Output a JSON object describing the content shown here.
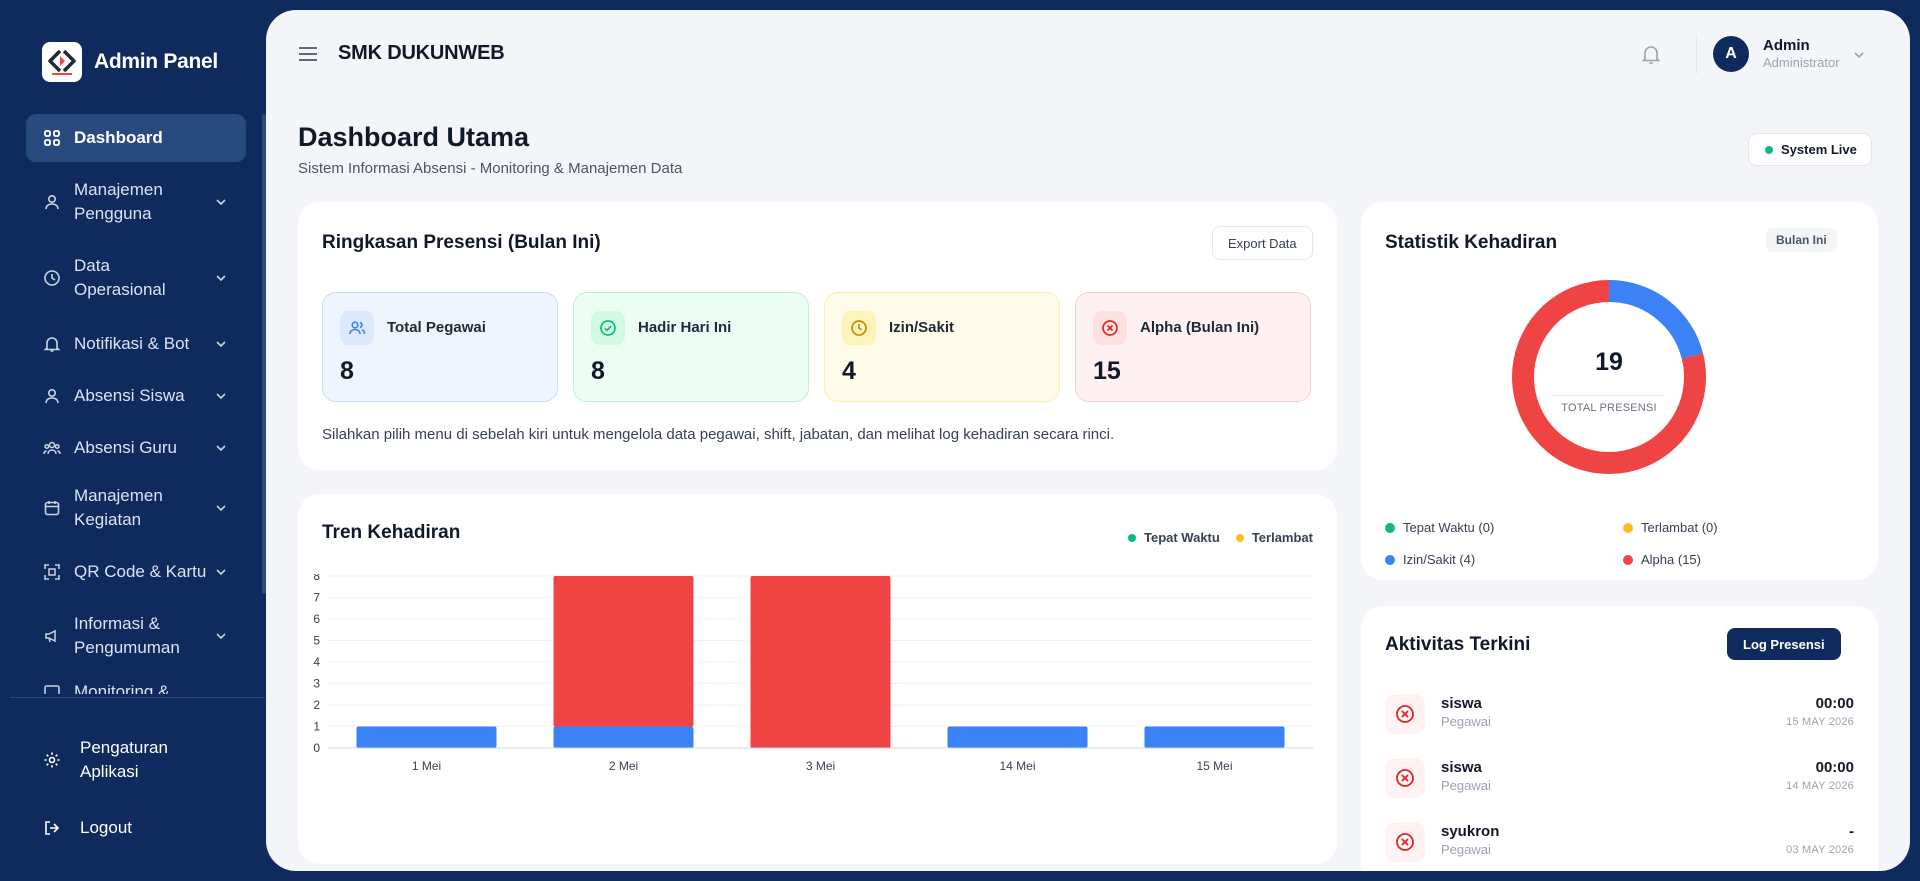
{
  "sidebar": {
    "brand": "Admin Panel",
    "logo_text": "DUKUNWEB",
    "items": [
      {
        "label": "Dashboard",
        "icon": "grid-icon",
        "active": true
      },
      {
        "label": "Manajemen Pengguna",
        "icon": "users-icon"
      },
      {
        "label": "Data Operasional",
        "icon": "clock-icon"
      },
      {
        "label": "Notifikasi & Bot",
        "icon": "bell-icon"
      },
      {
        "label": "Absensi Siswa",
        "icon": "user-icon"
      },
      {
        "label": "Absensi Guru",
        "icon": "group-icon"
      },
      {
        "label": "Manajemen Kegiatan",
        "icon": "calendar-icon"
      },
      {
        "label": "QR Code & Kartu",
        "icon": "qr-icon"
      },
      {
        "label": "Informasi & Pengumuman",
        "icon": "megaphone-icon"
      },
      {
        "label": "Monitoring &",
        "icon": "monitor-icon"
      }
    ],
    "settings": "Pengaturan Aplikasi",
    "logout": "Logout"
  },
  "header": {
    "school": "SMK DUKUNWEB",
    "user_initial": "A",
    "user_name": "Admin",
    "user_role": "Administrator"
  },
  "page": {
    "title": "Dashboard Utama",
    "subtitle": "Sistem Informasi Absensi - Monitoring & Manajemen Data",
    "status": "System Live"
  },
  "summary": {
    "title": "Ringkasan Presensi (Bulan Ini)",
    "export": "Export Data",
    "stats": [
      {
        "label": "Total Pegawai",
        "value": "8"
      },
      {
        "label": "Hadir Hari Ini",
        "value": "8"
      },
      {
        "label": "Izin/Sakit",
        "value": "4"
      },
      {
        "label": "Alpha (Bulan Ini)",
        "value": "15"
      }
    ],
    "note": "Silahkan pilih menu di sebelah kiri untuk mengelola data pegawai, shift, jabatan, dan melihat log kehadiran secara rinci."
  },
  "trend": {
    "title": "Tren Kehadiran",
    "legend": [
      {
        "name": "Tepat Waktu",
        "color": "#10b981"
      },
      {
        "name": "Terlambat",
        "color": "#fbbf24"
      }
    ]
  },
  "chart_data": {
    "type": "bar",
    "stacked": true,
    "categories": [
      "1 Mei",
      "2 Mei",
      "3 Mei",
      "14 Mei",
      "15 Mei"
    ],
    "series": [
      {
        "color": "#3b82f6",
        "values": [
          1,
          1,
          0,
          1,
          1
        ]
      },
      {
        "color": "#ef4444",
        "values": [
          0,
          7,
          8,
          0,
          0
        ]
      }
    ],
    "ylim": [
      0,
      8
    ],
    "yticks": [
      "0",
      "1",
      "2",
      "3",
      "4",
      "5",
      "6",
      "7",
      "8"
    ],
    "grid": true
  },
  "kehadiran": {
    "title": "Statistik Kehadiran",
    "period": "Bulan Ini",
    "total": "19",
    "total_label": "TOTAL PRESENSI",
    "slices": [
      {
        "label": "Tepat Waktu (0)",
        "value": 0,
        "color": "#10b981"
      },
      {
        "label": "Terlambat (0)",
        "value": 0,
        "color": "#fbbf24"
      },
      {
        "label": "Izin/Sakit (4)",
        "value": 4,
        "color": "#3b82f6"
      },
      {
        "label": "Alpha (15)",
        "value": 15,
        "color": "#ef4444"
      }
    ]
  },
  "activity": {
    "title": "Aktivitas Terkini",
    "button": "Log Presensi",
    "items": [
      {
        "name": "siswa",
        "role": "Pegawai",
        "time": "00:00",
        "date": "15 MAY 2026"
      },
      {
        "name": "siswa",
        "role": "Pegawai",
        "time": "00:00",
        "date": "14 MAY 2026"
      },
      {
        "name": "syukron",
        "role": "Pegawai",
        "time": "-",
        "date": "03 MAY 2026"
      }
    ]
  }
}
